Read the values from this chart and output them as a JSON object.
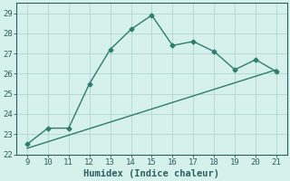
{
  "x": [
    9,
    10,
    11,
    12,
    13,
    14,
    15,
    16,
    17,
    18,
    19,
    20,
    21
  ],
  "y_main": [
    22.5,
    23.3,
    23.3,
    25.5,
    27.2,
    28.2,
    28.9,
    27.4,
    27.6,
    27.1,
    26.2,
    26.7,
    26.1
  ],
  "trend_x0": 9,
  "trend_y0": 22.3,
  "trend_x1": 21,
  "trend_y1": 26.2,
  "line_color": "#2e7d6e",
  "bg_color": "#d6f0ec",
  "grid_color": "#b0d8d0",
  "tick_color": "#2e6060",
  "xlabel": "Humidex (Indice chaleur)",
  "ylim": [
    22,
    29.5
  ],
  "yticks": [
    22,
    23,
    24,
    25,
    26,
    27,
    28,
    29
  ],
  "xticks": [
    9,
    10,
    11,
    12,
    13,
    14,
    15,
    16,
    17,
    18,
    19,
    20,
    21
  ],
  "xlim": [
    8.5,
    21.5
  ],
  "markersize": 2.5,
  "linewidth": 1.0,
  "tick_fontsize": 6.5,
  "xlabel_fontsize": 7.5
}
